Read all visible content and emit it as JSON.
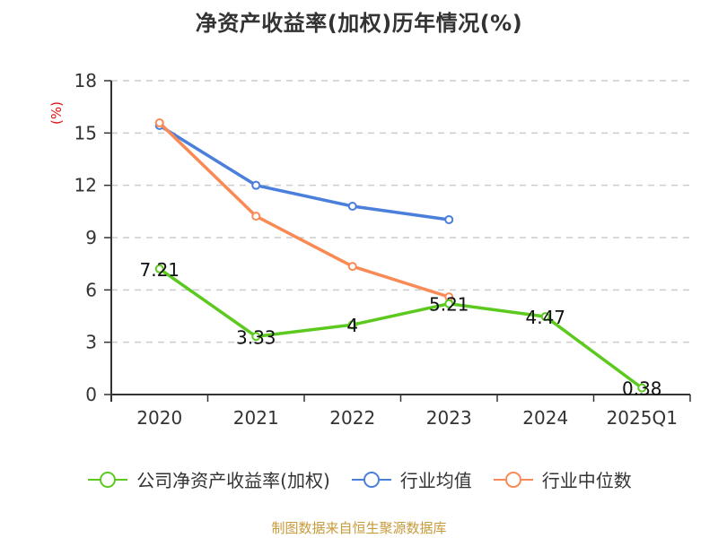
{
  "title": "净资产收益率(加权)历年情况(%)",
  "footer": "制图数据来自恒生聚源数据库",
  "colors": {
    "company": "#5cc91e",
    "industry_avg": "#4a7fdc",
    "industry_median": "#fa8a55",
    "axis": "#333333",
    "grid": "#cccccc",
    "ylabel": "#e01010",
    "footer": "#c79a3a"
  },
  "chart_data": {
    "type": "line",
    "title": "净资产收益率(加权)历年情况(%)",
    "xlabel": "",
    "ylabel": "(%)",
    "ylim": [
      0,
      18
    ],
    "yticks": [
      0,
      3,
      6,
      9,
      12,
      15,
      18
    ],
    "grid": true,
    "legend_position": "bottom",
    "categories": [
      "2020",
      "2021",
      "2022",
      "2023",
      "2024",
      "2025Q1"
    ],
    "series": [
      {
        "name": "公司净资产收益率(加权)",
        "key": "company",
        "values": [
          7.21,
          3.33,
          4,
          5.21,
          4.47,
          0.38
        ],
        "labels": [
          "7.21",
          "3.33",
          "4",
          "5.21",
          "4.47",
          "0.38"
        ]
      },
      {
        "name": "行业均值",
        "key": "industry_avg",
        "values": [
          15.43,
          12.0,
          10.8,
          10.03,
          null,
          null
        ]
      },
      {
        "name": "行业中位数",
        "key": "industry_median",
        "values": [
          15.58,
          10.23,
          7.35,
          5.6,
          null,
          null
        ]
      }
    ]
  }
}
